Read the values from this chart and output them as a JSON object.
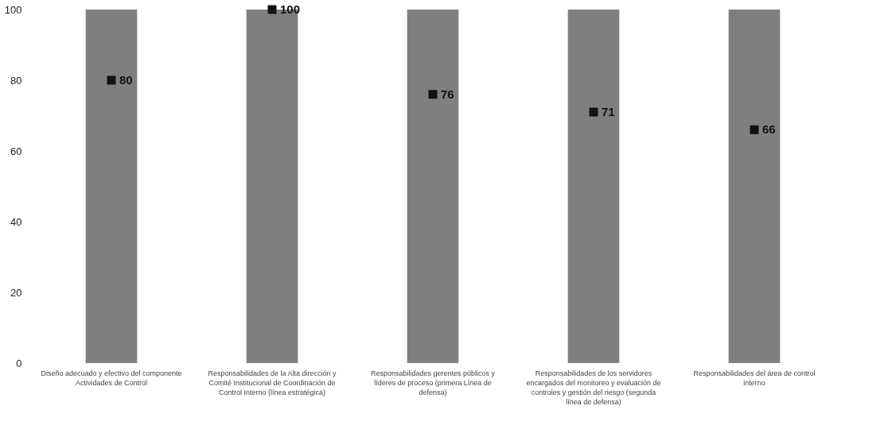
{
  "chart_data": {
    "type": "bar",
    "categories": [
      "Diseño adecuado y efectivo del componente Actividades de Control",
      "Responsabilidades de la Alta dirección y Comité Institucional de Coordinación de Control Interno (línea estratégica)",
      "Responsabilidades gerentes públicos y líderes de proceso (primera Línea de defensa)",
      "Responsabilidades de los servidores encargados del monitoreo y evaluación de controles y gestión del riesgo (segunda línea de defensa)",
      "Responsabilidades del área de control interno"
    ],
    "series": [
      {
        "color": "#7f7f7f",
        "values": [
          100,
          100,
          100,
          100,
          100
        ]
      },
      {
        "type": "scatter",
        "color": "#111111",
        "marker": "square",
        "data_labels": true,
        "x": [
          "Diseño adecuado y efectivo del componente Actividades de Control",
          "Responsabilidades de la Alta dirección y Comité Institucional de Coordinación de Control Interno (línea estratégica)",
          "Responsabilidades gerentes públicos y líderes de proceso (primera Línea de defensa)",
          "Responsabilidades de los servidores encargados del monitoreo y evaluación de controles y gestión del riesgo (segunda línea de defensa)",
          "Responsabilidades del área de control interno"
        ],
        "values": [
          80,
          100,
          76,
          71,
          66
        ]
      }
    ],
    "ylim": [
      0,
      100
    ],
    "yticks": [
      0,
      20,
      40,
      60,
      80,
      100
    ],
    "grid": false
  }
}
